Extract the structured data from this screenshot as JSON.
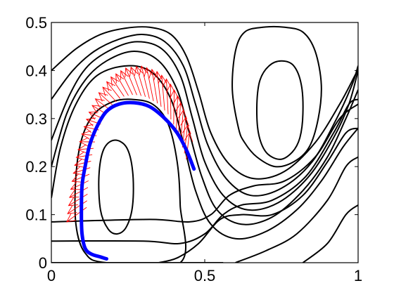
{
  "chart_data": {
    "type": "line",
    "title": "",
    "xlabel": "",
    "ylabel": "",
    "xlim": [
      0,
      1
    ],
    "ylim": [
      0,
      0.5
    ],
    "x_ticks": [
      0,
      0.5,
      1
    ],
    "x_tick_labels": [
      "0",
      "0.5",
      "1"
    ],
    "y_ticks": [
      0,
      0.1,
      0.2,
      0.3,
      0.4,
      0.5
    ],
    "y_tick_labels": [
      "0",
      "0.1",
      "0.2",
      "0.3",
      "0.4",
      "0.5"
    ],
    "grid": false,
    "colors": {
      "contour": "#000000",
      "trajectory": "#0000ff",
      "arrows": "#ff0000"
    },
    "series": [
      {
        "kind": "contour",
        "points": [
          [
            0.0,
            0.135
          ],
          [
            0.03,
            0.24
          ],
          [
            0.08,
            0.33
          ],
          [
            0.15,
            0.39
          ],
          [
            0.25,
            0.41
          ],
          [
            0.33,
            0.395
          ],
          [
            0.39,
            0.34
          ],
          [
            0.43,
            0.25
          ],
          [
            0.47,
            0.15
          ],
          [
            0.52,
            0.08
          ],
          [
            0.6,
            0.05
          ],
          [
            0.7,
            0.065
          ],
          [
            0.8,
            0.11
          ],
          [
            0.88,
            0.17
          ],
          [
            0.95,
            0.24
          ],
          [
            1.0,
            0.28
          ]
        ]
      },
      {
        "kind": "contour",
        "points": [
          [
            0.0,
            0.2
          ],
          [
            0.05,
            0.31
          ],
          [
            0.11,
            0.38
          ],
          [
            0.18,
            0.42
          ],
          [
            0.27,
            0.44
          ],
          [
            0.35,
            0.42
          ],
          [
            0.41,
            0.36
          ],
          [
            0.45,
            0.27
          ],
          [
            0.49,
            0.18
          ],
          [
            0.54,
            0.11
          ],
          [
            0.62,
            0.08
          ],
          [
            0.72,
            0.095
          ],
          [
            0.82,
            0.15
          ],
          [
            0.9,
            0.22
          ],
          [
            0.96,
            0.3
          ],
          [
            1.0,
            0.36
          ]
        ]
      },
      {
        "kind": "contour",
        "points": [
          [
            0.0,
            0.255
          ],
          [
            0.06,
            0.35
          ],
          [
            0.12,
            0.41
          ],
          [
            0.2,
            0.445
          ],
          [
            0.28,
            0.46
          ],
          [
            0.36,
            0.445
          ],
          [
            0.42,
            0.39
          ],
          [
            0.46,
            0.3
          ],
          [
            0.5,
            0.21
          ],
          [
            0.56,
            0.14
          ],
          [
            0.64,
            0.11
          ],
          [
            0.74,
            0.125
          ],
          [
            0.84,
            0.18
          ],
          [
            0.92,
            0.26
          ],
          [
            0.97,
            0.33
          ],
          [
            1.0,
            0.4
          ]
        ]
      },
      {
        "kind": "contour",
        "points": [
          [
            0.0,
            0.34
          ],
          [
            0.07,
            0.4
          ],
          [
            0.14,
            0.44
          ],
          [
            0.22,
            0.465
          ],
          [
            0.3,
            0.475
          ],
          [
            0.37,
            0.46
          ],
          [
            0.43,
            0.41
          ],
          [
            0.47,
            0.33
          ],
          [
            0.51,
            0.245
          ],
          [
            0.57,
            0.175
          ],
          [
            0.65,
            0.14
          ],
          [
            0.75,
            0.155
          ],
          [
            0.85,
            0.21
          ],
          [
            0.93,
            0.3
          ],
          [
            0.98,
            0.37
          ],
          [
            1.0,
            0.41
          ]
        ]
      },
      {
        "kind": "contour",
        "points": [
          [
            0.0,
            0.4
          ],
          [
            0.08,
            0.445
          ],
          [
            0.16,
            0.475
          ],
          [
            0.24,
            0.488
          ],
          [
            0.32,
            0.49
          ],
          [
            0.39,
            0.475
          ],
          [
            0.44,
            0.43
          ],
          [
            0.48,
            0.355
          ],
          [
            0.52,
            0.27
          ],
          [
            0.58,
            0.205
          ],
          [
            0.66,
            0.175
          ],
          [
            0.76,
            0.19
          ],
          [
            0.86,
            0.25
          ],
          [
            0.94,
            0.33
          ],
          [
            0.99,
            0.39
          ],
          [
            1.0,
            0.4
          ]
        ]
      },
      {
        "kind": "contour",
        "points": [
          [
            0.0,
            0.0
          ],
          [
            0.56,
            0.0
          ]
        ]
      },
      {
        "kind": "contour",
        "points": [
          [
            0.0,
            0.045
          ],
          [
            0.3,
            0.045
          ],
          [
            0.42,
            0.04
          ],
          [
            0.5,
            0.06
          ],
          [
            0.56,
            0.1
          ],
          [
            0.62,
            0.12
          ],
          [
            0.72,
            0.13
          ],
          [
            0.83,
            0.18
          ],
          [
            0.92,
            0.27
          ],
          [
            0.97,
            0.33
          ],
          [
            1.0,
            0.34
          ]
        ]
      },
      {
        "kind": "contour",
        "points": [
          [
            0.0,
            0.085
          ],
          [
            0.32,
            0.09
          ],
          [
            0.45,
            0.085
          ],
          [
            0.52,
            0.1
          ],
          [
            0.58,
            0.14
          ],
          [
            0.66,
            0.16
          ],
          [
            0.76,
            0.17
          ],
          [
            0.86,
            0.22
          ],
          [
            0.94,
            0.3
          ],
          [
            1.0,
            0.33
          ]
        ]
      },
      {
        "kind": "contour",
        "points": [
          [
            0.35,
            0.0
          ],
          [
            0.41,
            0.01
          ],
          [
            0.48,
            0.04
          ],
          [
            0.55,
            0.09
          ],
          [
            0.62,
            0.1
          ],
          [
            0.72,
            0.1
          ],
          [
            0.82,
            0.14
          ],
          [
            0.9,
            0.21
          ],
          [
            0.96,
            0.27
          ],
          [
            1.0,
            0.28
          ]
        ]
      },
      {
        "kind": "contour",
        "points": [
          [
            0.6,
            0.0
          ],
          [
            0.7,
            0.025
          ],
          [
            0.8,
            0.06
          ],
          [
            0.9,
            0.13
          ],
          [
            0.96,
            0.2
          ],
          [
            1.0,
            0.22
          ]
        ]
      },
      {
        "kind": "contour",
        "points": [
          [
            0.82,
            0.0
          ],
          [
            0.9,
            0.04
          ],
          [
            0.96,
            0.1
          ],
          [
            1.0,
            0.12
          ]
        ]
      },
      {
        "kind": "contour",
        "closed": true,
        "points": [
          [
            0.18,
            0.0
          ],
          [
            0.11,
            0.02
          ],
          [
            0.08,
            0.08
          ],
          [
            0.08,
            0.18
          ],
          [
            0.1,
            0.26
          ],
          [
            0.14,
            0.31
          ],
          [
            0.2,
            0.335
          ],
          [
            0.26,
            0.34
          ],
          [
            0.33,
            0.33
          ],
          [
            0.38,
            0.29
          ],
          [
            0.41,
            0.21
          ],
          [
            0.42,
            0.12
          ],
          [
            0.42,
            0.0
          ]
        ]
      },
      {
        "kind": "contour",
        "closed": true,
        "points": [
          [
            0.185,
            0.07
          ],
          [
            0.16,
            0.11
          ],
          [
            0.155,
            0.18
          ],
          [
            0.17,
            0.235
          ],
          [
            0.205,
            0.255
          ],
          [
            0.245,
            0.24
          ],
          [
            0.265,
            0.19
          ],
          [
            0.265,
            0.12
          ],
          [
            0.245,
            0.075
          ],
          [
            0.215,
            0.06
          ]
        ]
      },
      {
        "kind": "contour",
        "closed": true,
        "points": [
          [
            0.61,
            0.28
          ],
          [
            0.59,
            0.36
          ],
          [
            0.6,
            0.44
          ],
          [
            0.63,
            0.48
          ],
          [
            0.69,
            0.49
          ],
          [
            0.76,
            0.49
          ],
          [
            0.82,
            0.48
          ],
          [
            0.86,
            0.44
          ],
          [
            0.88,
            0.37
          ],
          [
            0.87,
            0.3
          ],
          [
            0.84,
            0.24
          ],
          [
            0.79,
            0.21
          ],
          [
            0.73,
            0.2
          ],
          [
            0.67,
            0.22
          ],
          [
            0.63,
            0.25
          ]
        ]
      },
      {
        "kind": "contour",
        "closed": true,
        "points": [
          [
            0.7,
            0.23
          ],
          [
            0.675,
            0.27
          ],
          [
            0.67,
            0.33
          ],
          [
            0.68,
            0.38
          ],
          [
            0.71,
            0.41
          ],
          [
            0.75,
            0.42
          ],
          [
            0.79,
            0.41
          ],
          [
            0.815,
            0.37
          ],
          [
            0.82,
            0.31
          ],
          [
            0.81,
            0.26
          ],
          [
            0.785,
            0.23
          ],
          [
            0.745,
            0.215
          ]
        ]
      },
      {
        "kind": "trajectory",
        "name": "",
        "points": [
          [
            0.18,
            0.008
          ],
          [
            0.16,
            0.012
          ],
          [
            0.13,
            0.018
          ],
          [
            0.11,
            0.03
          ],
          [
            0.1,
            0.06
          ],
          [
            0.098,
            0.1
          ],
          [
            0.1,
            0.16
          ],
          [
            0.11,
            0.2
          ],
          [
            0.125,
            0.245
          ],
          [
            0.15,
            0.285
          ],
          [
            0.18,
            0.315
          ],
          [
            0.22,
            0.33
          ],
          [
            0.27,
            0.333
          ],
          [
            0.32,
            0.325
          ],
          [
            0.37,
            0.3
          ],
          [
            0.41,
            0.27
          ],
          [
            0.44,
            0.235
          ],
          [
            0.465,
            0.195
          ]
        ]
      },
      {
        "kind": "arrow-band",
        "name": "",
        "base": [
          [
            0.05,
            0.085
          ],
          [
            0.06,
            0.14
          ],
          [
            0.075,
            0.2
          ],
          [
            0.095,
            0.26
          ],
          [
            0.12,
            0.31
          ],
          [
            0.15,
            0.35
          ],
          [
            0.19,
            0.385
          ],
          [
            0.24,
            0.405
          ],
          [
            0.29,
            0.41
          ],
          [
            0.34,
            0.4
          ],
          [
            0.38,
            0.38
          ],
          [
            0.41,
            0.35
          ],
          [
            0.435,
            0.31
          ],
          [
            0.45,
            0.27
          ]
        ],
        "tip": [
          [
            0.115,
            0.115
          ],
          [
            0.12,
            0.165
          ],
          [
            0.13,
            0.215
          ],
          [
            0.145,
            0.26
          ],
          [
            0.165,
            0.295
          ],
          [
            0.195,
            0.325
          ],
          [
            0.23,
            0.345
          ],
          [
            0.27,
            0.35
          ],
          [
            0.31,
            0.345
          ],
          [
            0.35,
            0.33
          ],
          [
            0.38,
            0.31
          ],
          [
            0.405,
            0.28
          ],
          [
            0.425,
            0.245
          ],
          [
            0.44,
            0.215
          ]
        ]
      }
    ]
  }
}
